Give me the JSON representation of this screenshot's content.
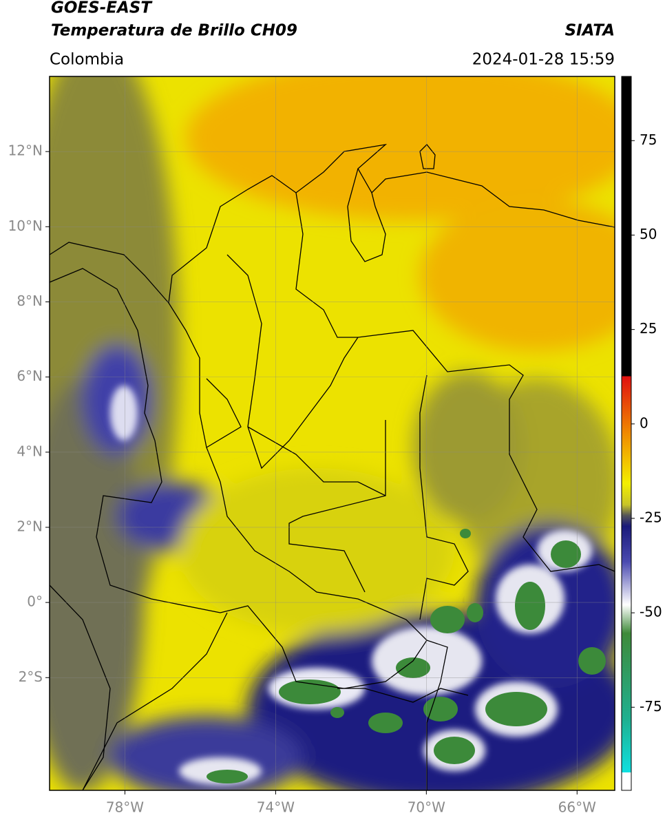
{
  "header": {
    "title": "GOES-EAST",
    "subtitle": "Temperatura de Brillo CH09",
    "source": "SIATA",
    "region": "Colombia",
    "datetime": "2024-01-28 15:59"
  },
  "map": {
    "xlim": [
      -80,
      -65
    ],
    "ylim": [
      -5,
      14
    ],
    "grid": true,
    "xticks": [
      {
        "value": -78,
        "label": "78°W"
      },
      {
        "value": -74,
        "label": "74°W"
      },
      {
        "value": -70,
        "label": "70°W"
      },
      {
        "value": -66,
        "label": "66°W"
      }
    ],
    "yticks": [
      {
        "value": 12,
        "label": "12°N"
      },
      {
        "value": 10,
        "label": "10°N"
      },
      {
        "value": 8,
        "label": "8°N"
      },
      {
        "value": 6,
        "label": "6°N"
      },
      {
        "value": 4,
        "label": "4°N"
      },
      {
        "value": 2,
        "label": "2°N"
      },
      {
        "value": 0,
        "label": "0°"
      },
      {
        "value": -2,
        "label": "2°S"
      }
    ]
  },
  "colorbar": {
    "lim": [
      -97,
      92
    ],
    "ticks": [
      75,
      50,
      25,
      0,
      -25,
      -50,
      -75
    ]
  }
}
